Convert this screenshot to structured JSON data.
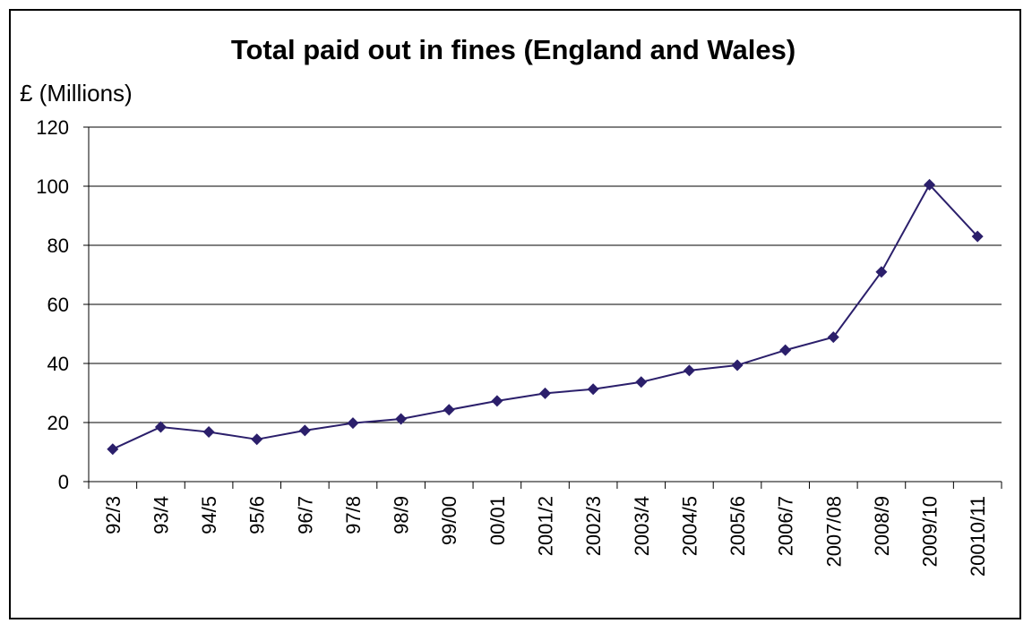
{
  "chart_data": {
    "type": "line",
    "title": "Total paid out in fines (England and Wales)",
    "ylabel": "£ (Millions)",
    "xlabel": "",
    "categories": [
      "92/3",
      "93/4",
      "94/5",
      "95/6",
      "96/7",
      "97/8",
      "98/9",
      "99/00",
      "00/01",
      "2001/2",
      "2002/3",
      "2003/4",
      "2004/5",
      "2005/6",
      "2006/7",
      "2007/08",
      "2008/9",
      "2009/10",
      "20010/11"
    ],
    "series": [
      {
        "values": [
          11,
          18.5,
          16.8,
          14.3,
          17.3,
          19.8,
          21.2,
          24.3,
          27.3,
          29.9,
          31.3,
          33.7,
          37.6,
          39.4,
          44.5,
          48.9,
          71,
          100.5,
          83
        ]
      }
    ],
    "ylim": [
      0,
      120
    ],
    "yticks": [
      0,
      20,
      40,
      60,
      80,
      100,
      120
    ],
    "grid": true,
    "legend": "none",
    "colors": {
      "line": "#2b1f6b",
      "marker": "#2b1f6b",
      "grid": "#000000",
      "border": "#000000"
    }
  }
}
